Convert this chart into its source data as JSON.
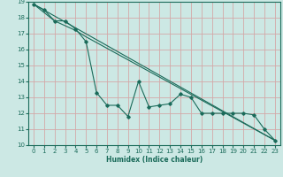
{
  "xlabel": "Humidex (Indice chaleur)",
  "bg_color": "#cce8e4",
  "line_color": "#1a6b5a",
  "grid_color": "#d4a8a8",
  "spine_color": "#1a6b5a",
  "xlim": [
    -0.5,
    23.5
  ],
  "ylim": [
    10,
    19
  ],
  "xticks": [
    0,
    1,
    2,
    3,
    4,
    5,
    6,
    7,
    8,
    9,
    10,
    11,
    12,
    13,
    14,
    15,
    16,
    17,
    18,
    19,
    20,
    21,
    22,
    23
  ],
  "yticks": [
    10,
    11,
    12,
    13,
    14,
    15,
    16,
    17,
    18,
    19
  ],
  "line1_x": [
    0,
    1,
    2,
    3,
    4,
    5,
    6,
    7,
    8,
    9,
    10,
    11,
    12,
    13,
    14,
    15,
    16,
    17,
    18,
    19,
    20,
    21,
    22,
    23
  ],
  "line1_y": [
    18.85,
    18.5,
    17.8,
    17.8,
    17.3,
    16.5,
    13.3,
    12.5,
    12.5,
    11.8,
    14.0,
    12.4,
    12.5,
    12.6,
    13.2,
    13.0,
    12.0,
    12.0,
    12.0,
    12.0,
    12.0,
    11.9,
    11.0,
    10.3
  ],
  "line2_x": [
    0,
    2,
    3,
    4,
    5,
    23
  ],
  "line2_y": [
    18.85,
    17.8,
    17.5,
    17.2,
    16.8,
    10.3
  ],
  "line3_x": [
    0,
    23
  ],
  "line3_y": [
    18.85,
    10.3
  ],
  "xlabel_fontsize": 5.5,
  "tick_fontsize": 5.0
}
